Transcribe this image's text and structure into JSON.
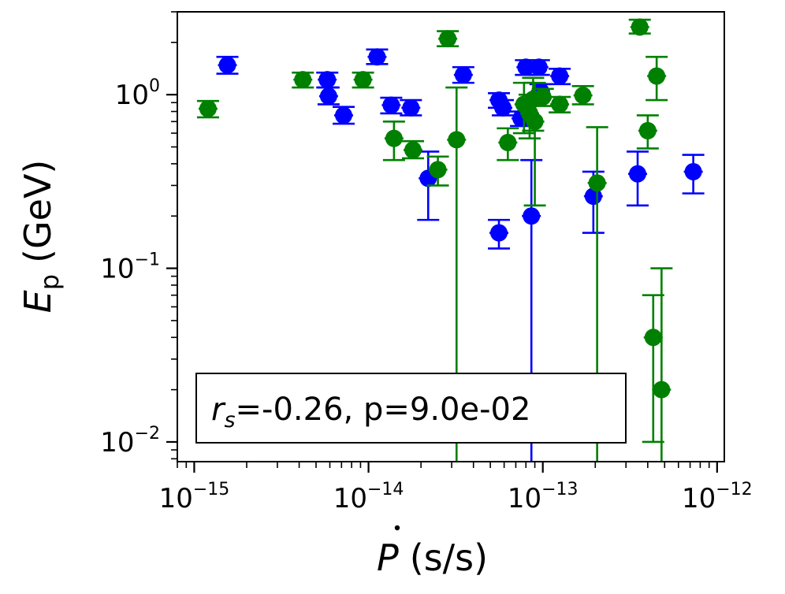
{
  "chart_data": {
    "type": "scatter",
    "title": "",
    "xlabel": "Ṗ (s/s)",
    "xlabel_symbol": "P",
    "xlabel_unit": "(s/s)",
    "ylabel": "E_p (GeV)",
    "ylabel_symbol": "E",
    "ylabel_sub": "p",
    "ylabel_unit": "(GeV)",
    "xscale": "log",
    "yscale": "log",
    "xlim": [
      8e-16,
      1.1e-12
    ],
    "ylim": [
      0.0077,
      3.0
    ],
    "xticks": [
      {
        "value": 1e-15,
        "base": "10",
        "exp": "−15"
      },
      {
        "value": 1e-14,
        "base": "10",
        "exp": "−14"
      },
      {
        "value": 1e-13,
        "base": "10",
        "exp": "−13"
      },
      {
        "value": 1e-12,
        "base": "10",
        "exp": "−12"
      }
    ],
    "yticks": [
      {
        "value": 0.01,
        "base": "10",
        "exp": "−2"
      },
      {
        "value": 0.1,
        "base": "10",
        "exp": "−1"
      },
      {
        "value": 1,
        "base": "10",
        "exp": "0"
      }
    ],
    "annotation": {
      "var": "r",
      "sub": "s",
      "text": "=-0.26, p=9.0e-02",
      "position": "bottom-left"
    },
    "series": [
      {
        "name": "blue",
        "color": "#0000ff",
        "points": [
          {
            "x": 1.55e-15,
            "y": 1.48,
            "ylo": 1.32,
            "yhi": 1.65
          },
          {
            "x": 5.8e-15,
            "y": 1.22,
            "ylo": 1.1,
            "yhi": 1.34
          },
          {
            "x": 5.9e-15,
            "y": 0.98,
            "ylo": 0.88,
            "yhi": 1.1
          },
          {
            "x": 7.2e-15,
            "y": 0.76,
            "ylo": 0.68,
            "yhi": 0.85
          },
          {
            "x": 1.12e-14,
            "y": 1.65,
            "ylo": 1.5,
            "yhi": 1.82
          },
          {
            "x": 1.35e-14,
            "y": 0.87,
            "ylo": 0.78,
            "yhi": 0.96
          },
          {
            "x": 1.75e-14,
            "y": 0.84,
            "ylo": 0.76,
            "yhi": 0.93
          },
          {
            "x": 2.2e-14,
            "y": 0.33,
            "ylo": 0.19,
            "yhi": 0.47
          },
          {
            "x": 3.5e-14,
            "y": 1.3,
            "ylo": 1.17,
            "yhi": 1.44
          },
          {
            "x": 5.6e-14,
            "y": 0.93,
            "ylo": 0.84,
            "yhi": 1.02
          },
          {
            "x": 5.9e-14,
            "y": 0.84,
            "ylo": 0.76,
            "yhi": 0.93
          },
          {
            "x": 5.6e-14,
            "y": 0.16,
            "ylo": 0.13,
            "yhi": 0.19
          },
          {
            "x": 7.5e-14,
            "y": 0.73,
            "ylo": 0.66,
            "yhi": 0.8
          },
          {
            "x": 8e-14,
            "y": 1.44,
            "ylo": 1.3,
            "yhi": 1.58
          },
          {
            "x": 8.6e-14,
            "y": 0.2,
            "ylo": 0.001,
            "yhi": 0.42
          },
          {
            "x": 9.5e-14,
            "y": 1.44,
            "ylo": 1.3,
            "yhi": 1.58
          },
          {
            "x": 9.7e-14,
            "y": 1.05,
            "ylo": 0.95,
            "yhi": 1.15
          },
          {
            "x": 1.25e-13,
            "y": 1.28,
            "ylo": 1.15,
            "yhi": 1.41
          },
          {
            "x": 1.95e-13,
            "y": 0.26,
            "ylo": 0.16,
            "yhi": 0.36
          },
          {
            "x": 3.5e-13,
            "y": 0.35,
            "ylo": 0.23,
            "yhi": 0.47
          },
          {
            "x": 7.3e-13,
            "y": 0.36,
            "ylo": 0.27,
            "yhi": 0.45
          }
        ]
      },
      {
        "name": "green",
        "color": "#008000",
        "points": [
          {
            "x": 1.2e-15,
            "y": 0.83,
            "ylo": 0.74,
            "yhi": 0.92
          },
          {
            "x": 4.2e-15,
            "y": 1.22,
            "ylo": 1.1,
            "yhi": 1.34
          },
          {
            "x": 9.3e-15,
            "y": 1.22,
            "ylo": 1.1,
            "yhi": 1.34
          },
          {
            "x": 1.4e-14,
            "y": 0.56,
            "ylo": 0.42,
            "yhi": 0.7
          },
          {
            "x": 1.8e-14,
            "y": 0.48,
            "ylo": 0.43,
            "yhi": 0.54
          },
          {
            "x": 2.5e-14,
            "y": 0.37,
            "ylo": 0.3,
            "yhi": 0.44
          },
          {
            "x": 2.85e-14,
            "y": 2.1,
            "ylo": 1.9,
            "yhi": 2.32
          },
          {
            "x": 3.2e-14,
            "y": 0.55,
            "ylo": 0.001,
            "yhi": 1.1
          },
          {
            "x": 6.3e-14,
            "y": 0.53,
            "ylo": 0.42,
            "yhi": 0.64
          },
          {
            "x": 7.8e-14,
            "y": 0.88,
            "ylo": 0.6,
            "yhi": 1.17
          },
          {
            "x": 8.4e-14,
            "y": 0.78,
            "ylo": 0.56,
            "yhi": 1.0
          },
          {
            "x": 8.8e-14,
            "y": 0.94,
            "ylo": 0.62,
            "yhi": 1.25
          },
          {
            "x": 9e-14,
            "y": 0.7,
            "ylo": 0.23,
            "yhi": 1.17
          },
          {
            "x": 1e-13,
            "y": 0.97,
            "ylo": 0.86,
            "yhi": 1.08
          },
          {
            "x": 1.25e-13,
            "y": 0.88,
            "ylo": 0.79,
            "yhi": 0.97
          },
          {
            "x": 1.7e-13,
            "y": 0.99,
            "ylo": 0.88,
            "yhi": 1.12
          },
          {
            "x": 2.05e-13,
            "y": 0.31,
            "ylo": 0.001,
            "yhi": 0.65
          },
          {
            "x": 3.6e-13,
            "y": 2.45,
            "ylo": 2.25,
            "yhi": 2.7
          },
          {
            "x": 4e-13,
            "y": 0.62,
            "ylo": 0.49,
            "yhi": 0.76
          },
          {
            "x": 4.5e-13,
            "y": 1.28,
            "ylo": 0.93,
            "yhi": 1.65
          },
          {
            "x": 4.3e-13,
            "y": 0.04,
            "ylo": 0.01,
            "yhi": 0.07
          },
          {
            "x": 4.8e-13,
            "y": 0.02,
            "ylo": 0.001,
            "yhi": 0.1
          }
        ]
      }
    ]
  }
}
